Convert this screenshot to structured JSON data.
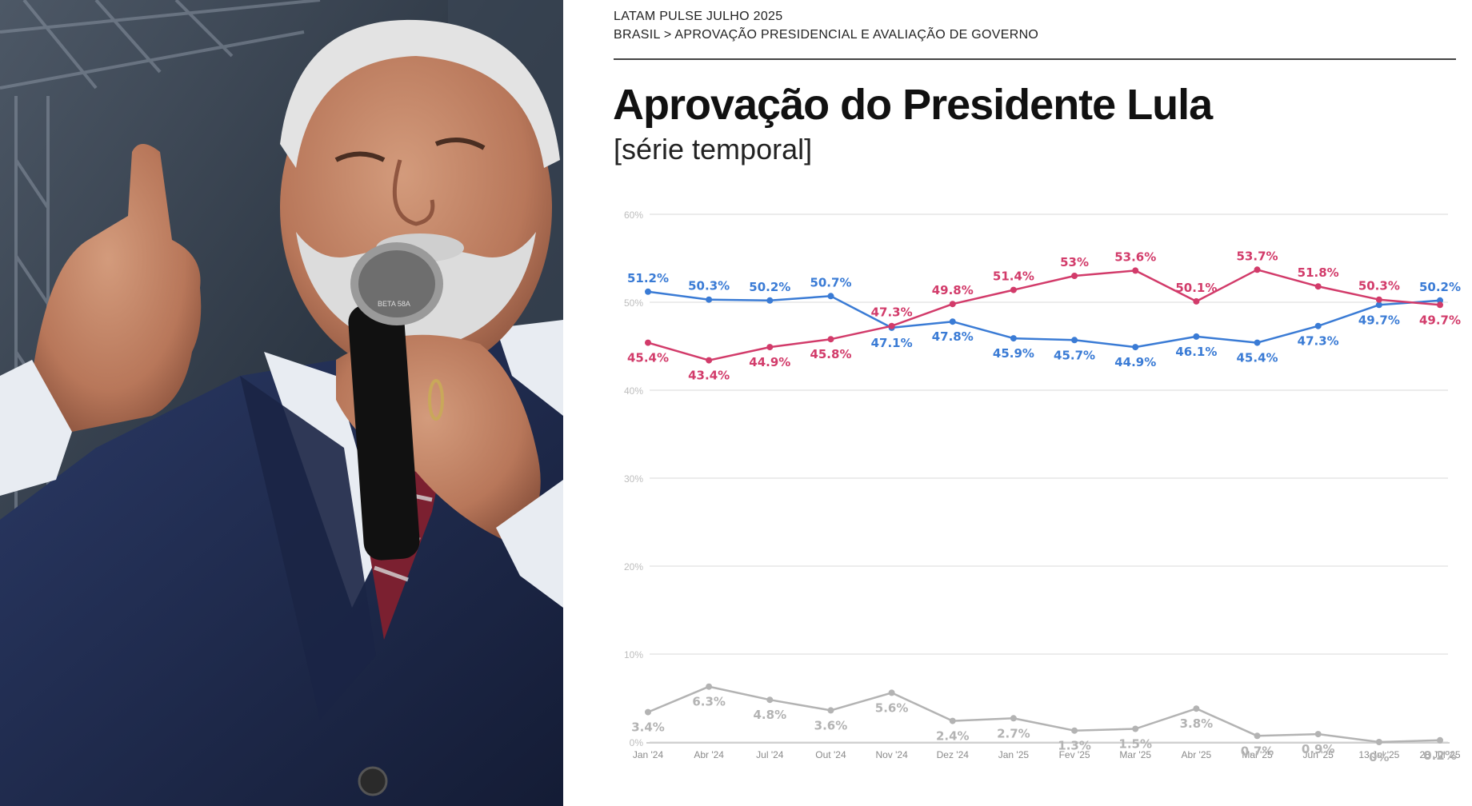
{
  "header": {
    "kicker_line1": "LATAM PULSE JULHO 2025",
    "kicker_line2": "BRASIL > APROVAÇÃO PRESIDENCIAL E AVALIAÇÃO DE GOVERNO"
  },
  "photo": {
    "microphone_brand": "BETA 58A"
  },
  "colors": {
    "approve": "#3a7bd5",
    "disapprove": "#d23b6a",
    "unknown": "#b3b3b3",
    "grid": "#e6e6e6"
  },
  "chart_data": {
    "type": "line",
    "title": "Aprovação do Presidente Lula",
    "subtitle": "[série temporal]",
    "categories": [
      "Jan '24",
      "Abr '24",
      "Jul '24",
      "Out '24",
      "Nov '24",
      "Dez '24",
      "Jan '25",
      "Fev '25",
      "Mar '25",
      "Abr '25",
      "Mai '25",
      "Jun '25",
      "13 Jul '25",
      "28 Jul '25"
    ],
    "ylim": [
      0,
      60
    ],
    "yticks": [
      "0%",
      "10%",
      "20%",
      "30%",
      "40%",
      "50%",
      "60%"
    ],
    "series": [
      {
        "key": "approve",
        "values": [
          51.2,
          50.3,
          50.2,
          50.7,
          47.1,
          47.8,
          45.9,
          45.7,
          44.9,
          46.1,
          45.4,
          47.3,
          49.7,
          50.2
        ],
        "labels": [
          "51.2%",
          "50.3%",
          "50.2%",
          "50.7%",
          "47.1%",
          "47.8%",
          "45.9%",
          "45.7%",
          "44.9%",
          "46.1%",
          "45.4%",
          "47.3%",
          "49.7%",
          "50.2%"
        ]
      },
      {
        "key": "disapprove",
        "values": [
          45.4,
          43.4,
          44.9,
          45.8,
          47.3,
          49.8,
          51.4,
          53,
          53.6,
          50.1,
          53.7,
          51.8,
          50.3,
          49.7
        ],
        "labels": [
          "45.4%",
          "43.4%",
          "44.9%",
          "45.8%",
          "47.3%",
          "49.8%",
          "51.4%",
          "53%",
          "53.6%",
          "50.1%",
          "53.7%",
          "51.8%",
          "50.3%",
          "49.7%"
        ]
      },
      {
        "key": "unknown",
        "values": [
          3.4,
          6.3,
          4.8,
          3.6,
          5.6,
          2.4,
          2.7,
          1.3,
          1.5,
          3.8,
          0.7,
          0.9,
          0,
          0.2
        ],
        "labels": [
          "3.4%",
          "6.3%",
          "4.8%",
          "3.6%",
          "5.6%",
          "2.4%",
          "2.7%",
          "1.3%",
          "1.5%",
          "3.8%",
          "0.7%",
          "0.9%",
          "0%",
          "0.2%"
        ]
      }
    ],
    "grid": true,
    "legend": "none"
  }
}
